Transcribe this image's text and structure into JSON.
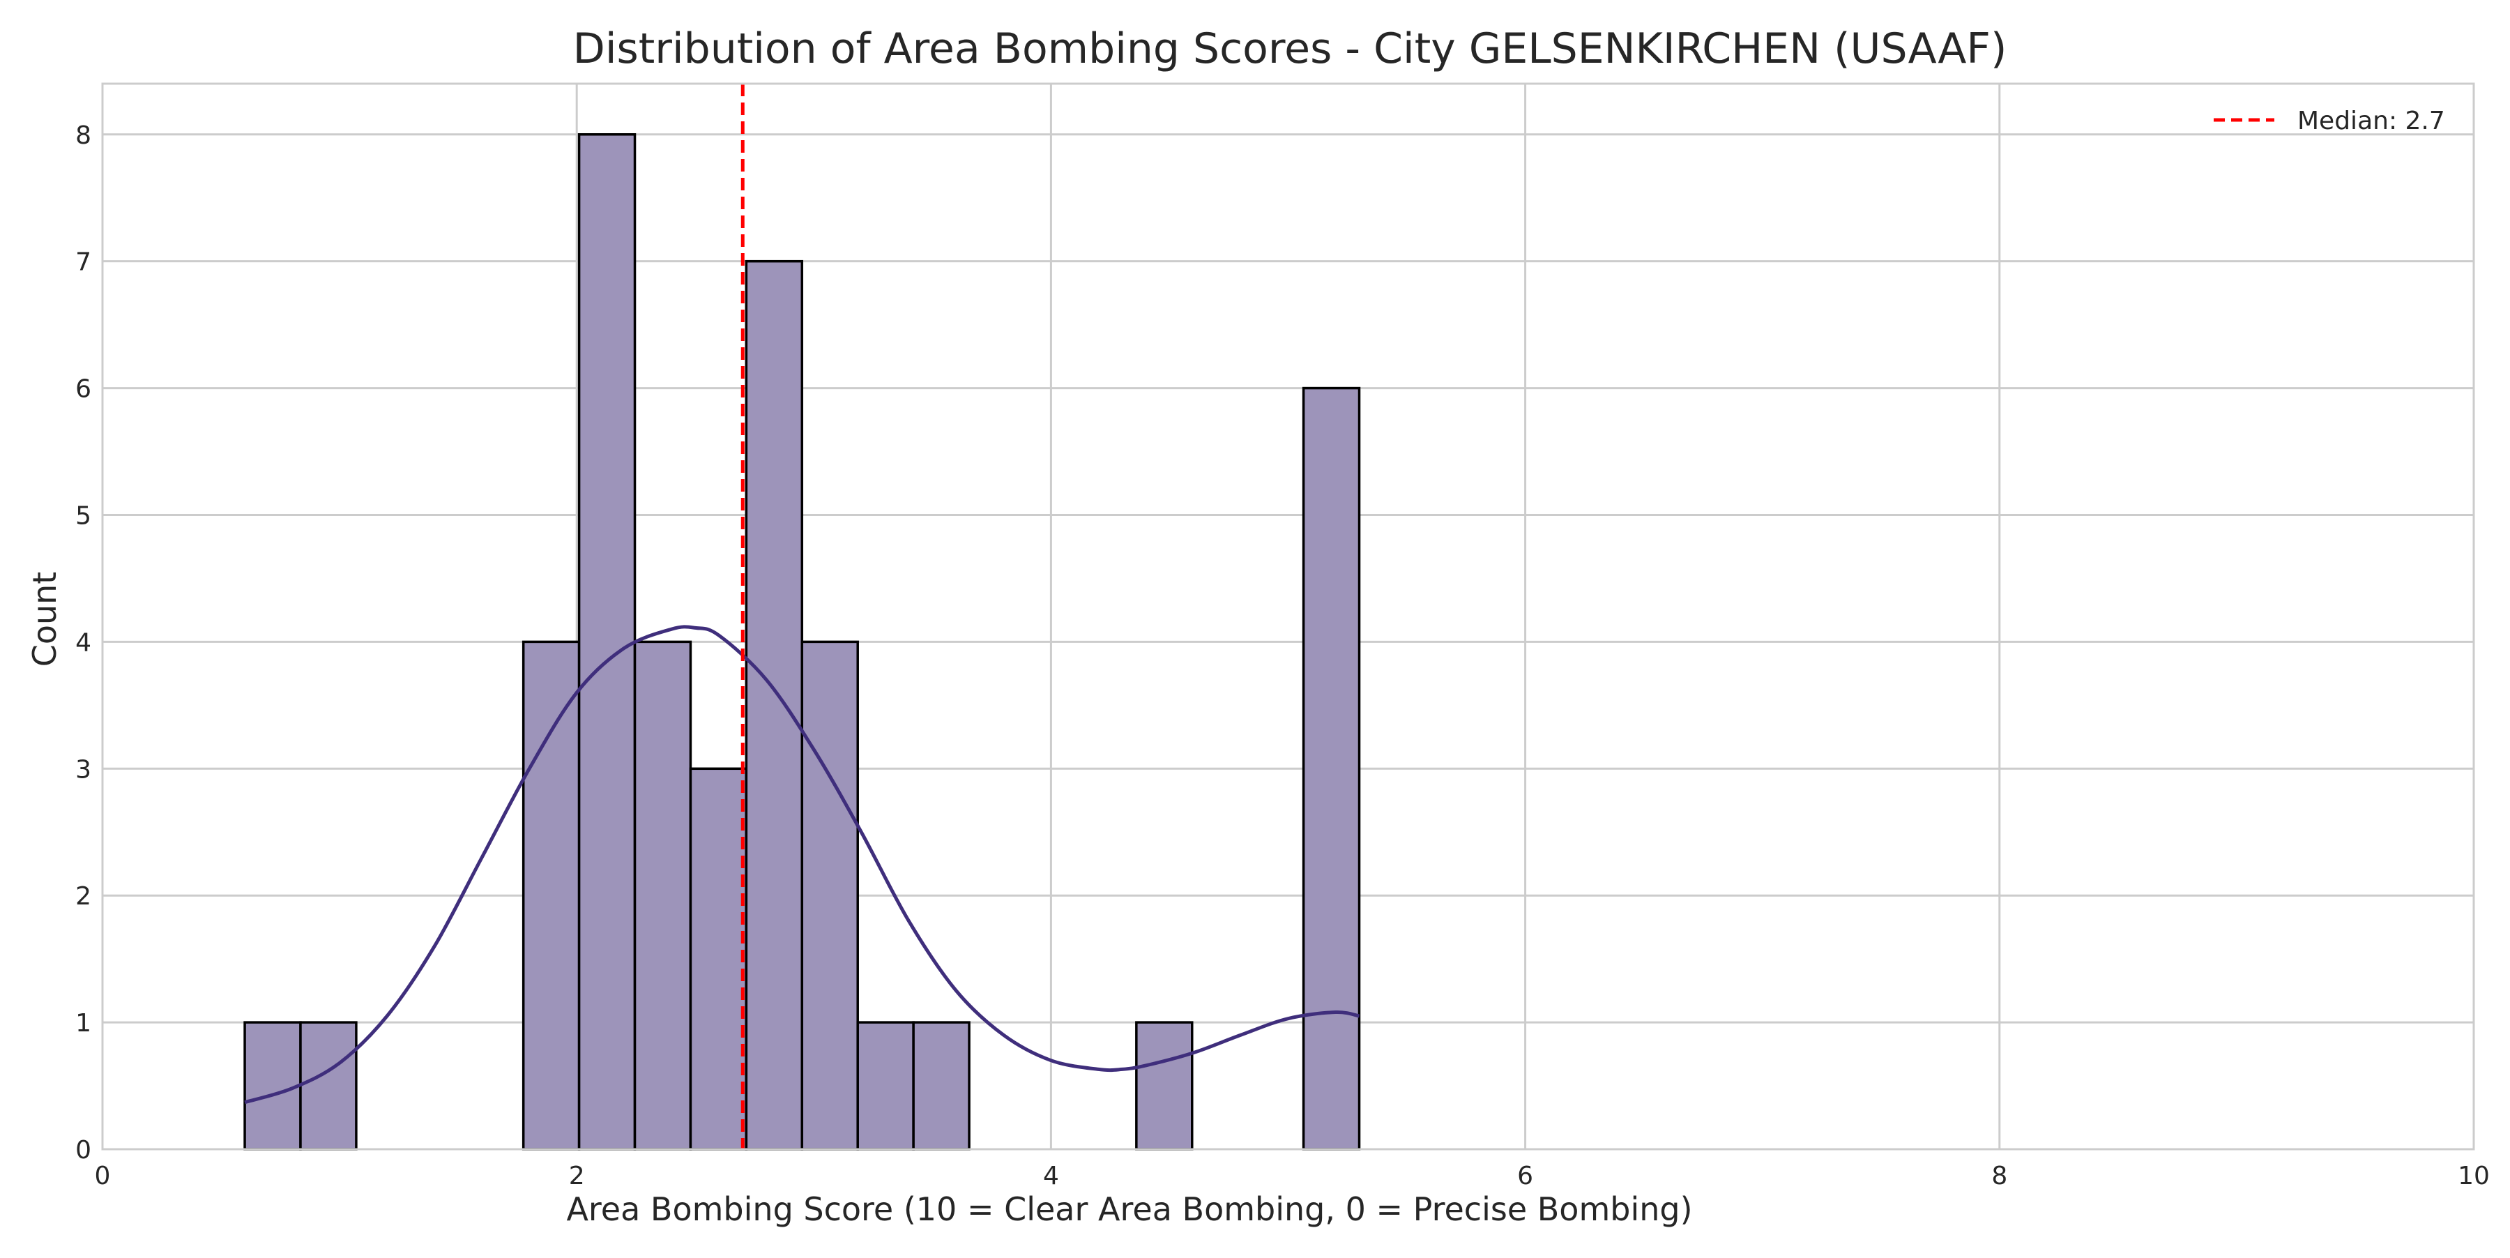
{
  "chart_data": {
    "type": "bar",
    "title": "Distribution of Area Bombing Scores - City GELSENKIRCHEN (USAAF)",
    "xlabel": "Area Bombing Score (10 = Clear Area Bombing, 0 = Precise Bombing)",
    "ylabel": "Count",
    "xlim": [
      0,
      10
    ],
    "ylim": [
      0,
      8.4
    ],
    "grid": true,
    "legend_position": "top-right",
    "x_ticks": [
      0,
      2,
      4,
      6,
      8,
      10
    ],
    "y_ticks": [
      0,
      1,
      2,
      3,
      4,
      5,
      6,
      7,
      8
    ],
    "bins": [
      {
        "start": 0.6,
        "end": 0.835,
        "count": 1
      },
      {
        "start": 0.835,
        "end": 1.07,
        "count": 1
      },
      {
        "start": 1.775,
        "end": 2.01,
        "count": 4
      },
      {
        "start": 2.01,
        "end": 2.245,
        "count": 8
      },
      {
        "start": 2.245,
        "end": 2.48,
        "count": 4
      },
      {
        "start": 2.48,
        "end": 2.715,
        "count": 3
      },
      {
        "start": 2.715,
        "end": 2.95,
        "count": 7
      },
      {
        "start": 2.95,
        "end": 3.185,
        "count": 4
      },
      {
        "start": 3.185,
        "end": 3.42,
        "count": 1
      },
      {
        "start": 3.42,
        "end": 3.655,
        "count": 1
      },
      {
        "start": 4.36,
        "end": 4.595,
        "count": 1
      },
      {
        "start": 5.065,
        "end": 5.3,
        "count": 6
      }
    ],
    "kde": {
      "x": [
        0.6,
        0.8,
        1.0,
        1.2,
        1.4,
        1.6,
        1.8,
        2.0,
        2.2,
        2.4,
        2.5,
        2.6,
        2.8,
        3.0,
        3.2,
        3.4,
        3.6,
        3.8,
        4.0,
        4.2,
        4.3,
        4.4,
        4.6,
        4.8,
        5.0,
        5.2,
        5.3
      ],
      "y": [
        0.37,
        0.48,
        0.68,
        1.05,
        1.6,
        2.3,
        3.0,
        3.6,
        3.95,
        4.1,
        4.11,
        4.05,
        3.7,
        3.15,
        2.5,
        1.8,
        1.25,
        0.9,
        0.7,
        0.63,
        0.63,
        0.66,
        0.76,
        0.9,
        1.03,
        1.08,
        1.05
      ]
    },
    "median": {
      "value": 2.7,
      "label": "Median: 2.7",
      "color": "#ff0000"
    },
    "colors": {
      "bar_fill": "#9d94ba",
      "bar_edge": "#000000",
      "kde_line": "#3f2e7c",
      "grid": "#cccccc"
    }
  }
}
